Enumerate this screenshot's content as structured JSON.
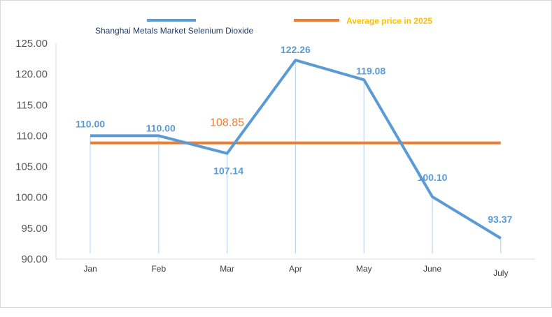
{
  "chart_data": {
    "type": "line",
    "categories": [
      "Jan",
      "Feb",
      "Mar",
      "Apr",
      "May",
      "June",
      "July"
    ],
    "series": [
      {
        "name": "Shanghai Metals Market Selenium Dioxide",
        "values": [
          110.0,
          110.0,
          107.14,
          122.26,
          119.08,
          100.1,
          93.37
        ],
        "labels": [
          "110.00",
          "110.00",
          "107.14",
          "122.26",
          "119.08",
          "100.10",
          "93.37"
        ]
      },
      {
        "name": "Average price in 2025",
        "values": [
          108.85,
          108.85,
          108.85,
          108.85,
          108.85,
          108.85,
          108.85
        ],
        "label": "108.85"
      }
    ],
    "yticks": [
      "125.00",
      "120.00",
      "115.00",
      "110.00",
      "105.00",
      "100.00",
      "95.00",
      "90.00"
    ],
    "ylim": [
      90,
      125
    ],
    "grid": false,
    "legend": "top",
    "colors": {
      "price": "#5b9bd5",
      "average": "#ed7d31",
      "average_legend_text": "#ffc000"
    }
  }
}
